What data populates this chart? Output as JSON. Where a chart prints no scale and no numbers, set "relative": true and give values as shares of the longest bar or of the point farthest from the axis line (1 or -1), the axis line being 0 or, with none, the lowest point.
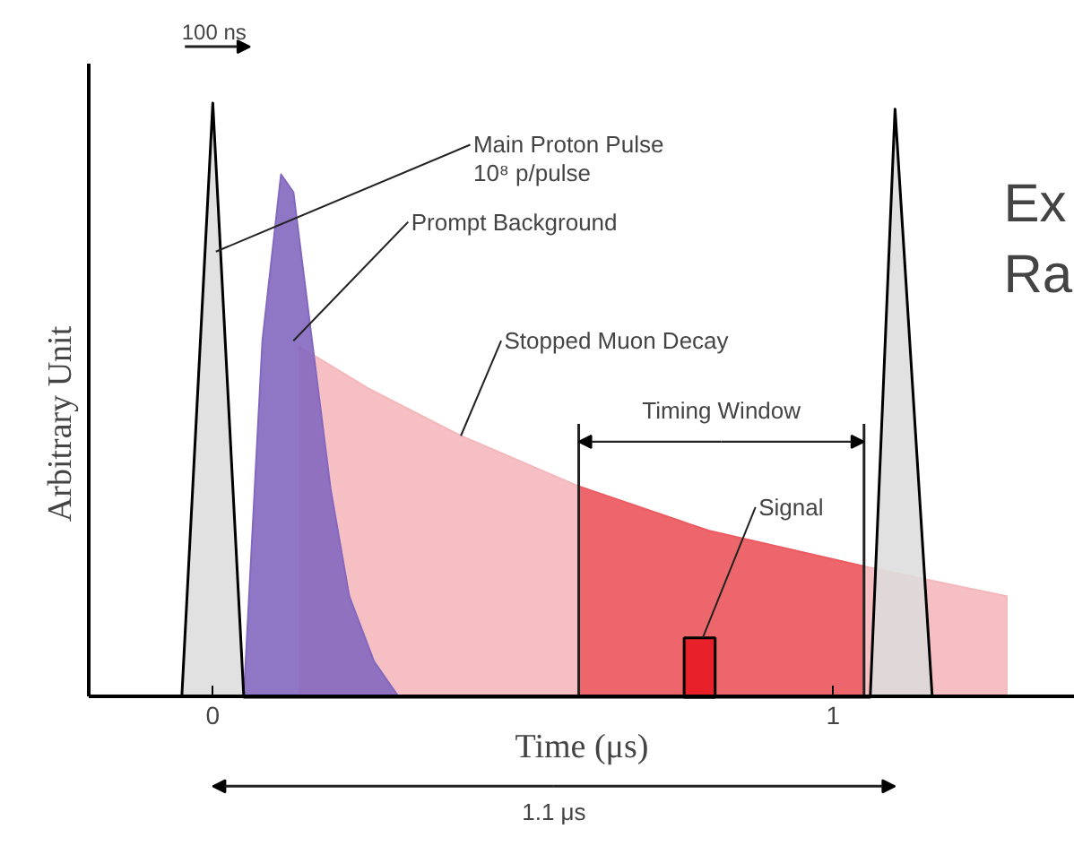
{
  "chart_data": {
    "type": "area",
    "relative": true,
    "xlabel": "Time (μs)",
    "ylabel": "Arbitrary Unit",
    "xlim": [
      -0.2,
      1.39
    ],
    "xticks": [
      0,
      1
    ],
    "grid": false,
    "legend": false,
    "series": [
      {
        "color": "#f4b8bc",
        "x": [
          0.14,
          0.14,
          0.25,
          0.4,
          0.59,
          0.8,
          1.05,
          1.28,
          1.28
        ],
        "values": [
          0,
          0.59,
          0.52,
          0.44,
          0.355,
          0.28,
          0.22,
          0.17,
          0
        ]
      },
      {
        "name": "Timing Window",
        "color": "#ec5c62",
        "x": [
          0.59,
          0.59,
          0.8,
          1.05,
          1.05
        ],
        "values": [
          0,
          0.355,
          0.28,
          0.22,
          0
        ]
      },
      {
        "color": "#8468c0",
        "x": [
          0.05,
          0.08,
          0.11,
          0.13,
          0.16,
          0.19,
          0.22,
          0.26,
          0.3
        ],
        "values": [
          0,
          0.6,
          0.88,
          0.85,
          0.6,
          0.35,
          0.17,
          0.06,
          0
        ]
      },
      {
        "color": "#dcdcdc",
        "x": [
          -0.05,
          0.0,
          0.05,
          1.06,
          1.1,
          1.16
        ],
        "values": [
          0,
          1,
          0,
          0,
          0.99,
          0
        ]
      },
      {
        "type": "bar",
        "color": "#e8202a",
        "x": [
          0.785
        ],
        "values": [
          0.1
        ]
      }
    ],
    "ref_lines": [
      {
        "axis": "x",
        "value": 0.59
      },
      {
        "axis": "x",
        "value": 1.05
      }
    ],
    "annotations": [
      "100 ns",
      {
        "text": "Main Proton Pulse\n10⁸ p/pulse",
        "x": 0.005,
        "y": 0.75
      },
      {
        "text": "Prompt Background",
        "x": 0.13,
        "y": 0.6
      },
      {
        "text": "Stopped Muon Decay",
        "x": 0.4,
        "y": 0.44
      },
      {
        "text": "Signal",
        "x": 0.79,
        "y": 0.1
      },
      "1.1 μs",
      "Ex",
      "Ra"
    ]
  }
}
